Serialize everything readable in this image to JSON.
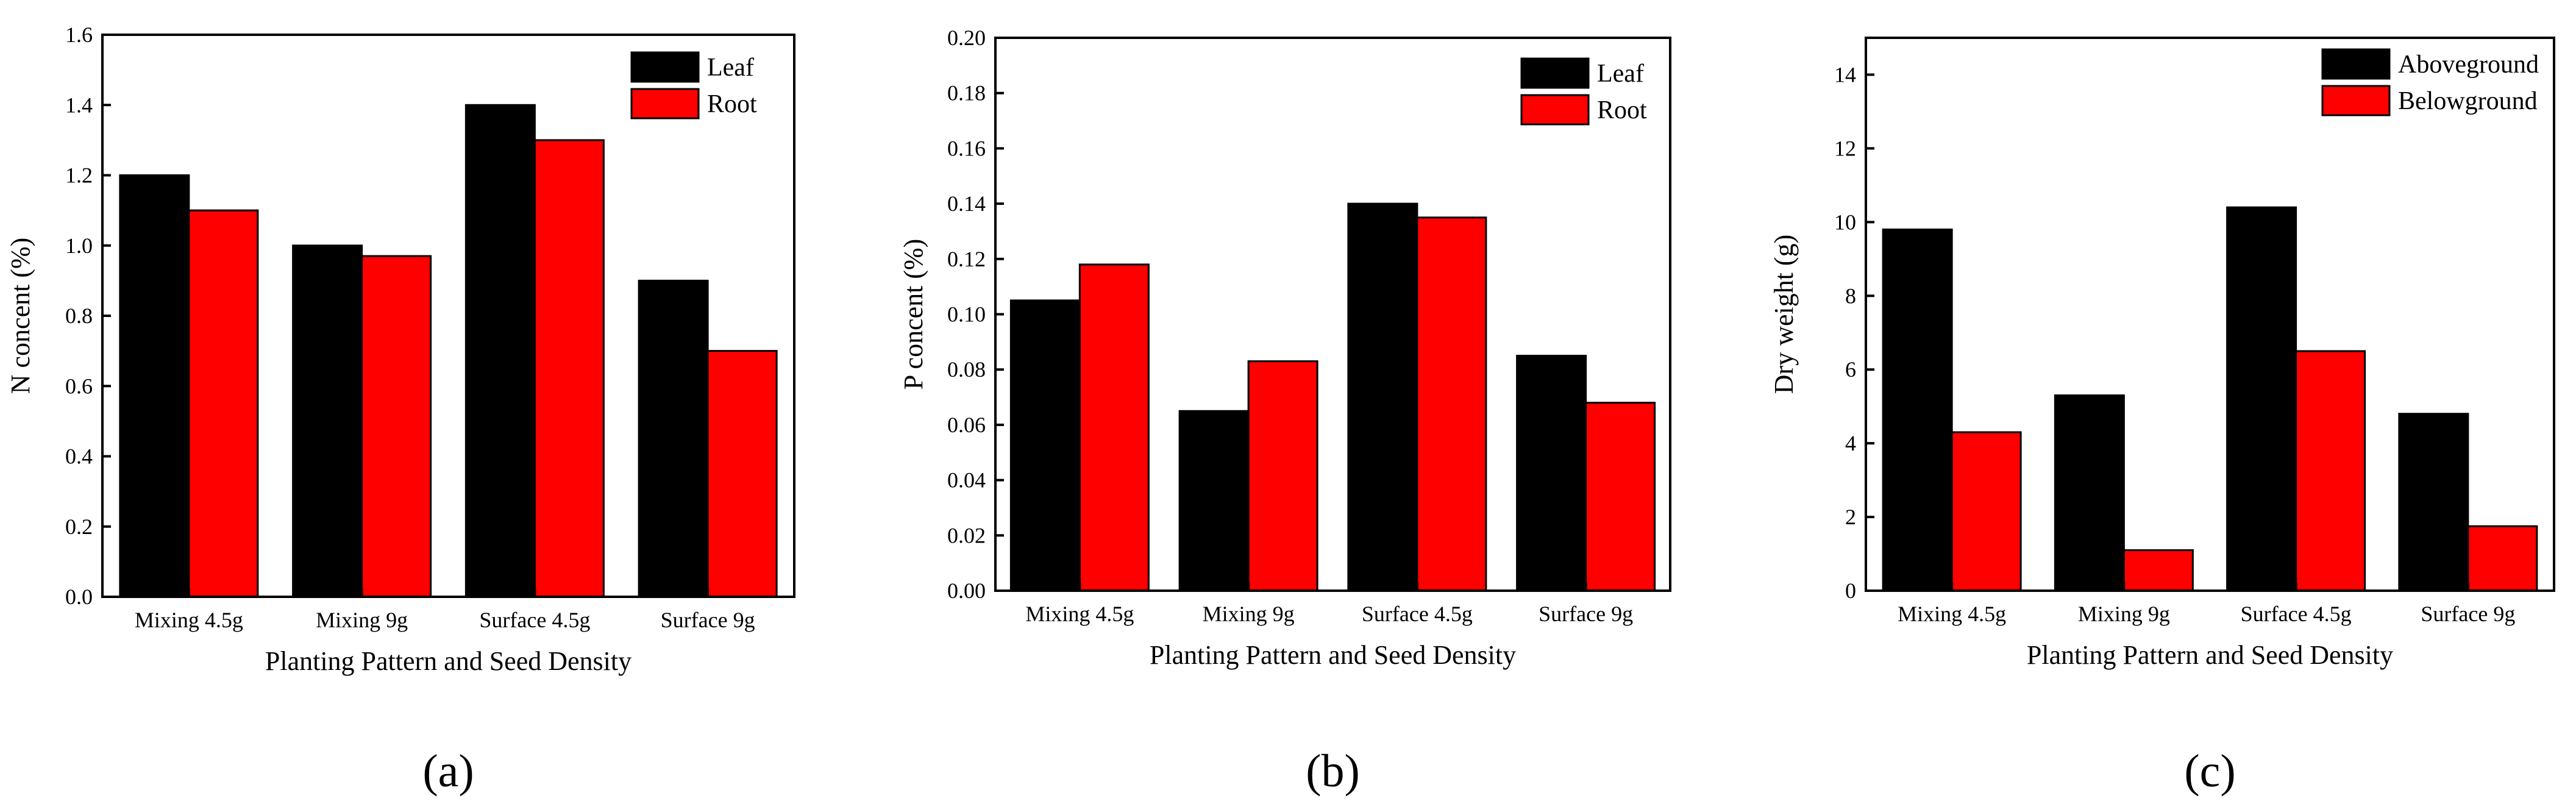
{
  "colors": {
    "series1": "#000000",
    "series2": "#ff0000"
  },
  "chart_data": [
    {
      "type": "bar",
      "caption": "(a)",
      "xlabel": "Planting Pattern and Seed Density",
      "ylabel": "N concent (%)",
      "categories": [
        "Mixing 4.5g",
        "Mixing 9g",
        "Surface 4.5g",
        "Surface 9g"
      ],
      "ylim": [
        0,
        1.6
      ],
      "yticks": [
        0.0,
        0.2,
        0.4,
        0.6,
        0.8,
        1.0,
        1.2,
        1.4,
        1.6
      ],
      "ytick_labels": [
        "0.0",
        "0.2",
        "0.4",
        "0.6",
        "0.8",
        "1.0",
        "1.2",
        "1.4",
        "1.6"
      ],
      "legend_position": "top-right",
      "series": [
        {
          "name": "Leaf",
          "values": [
            1.2,
            1.0,
            1.4,
            0.9
          ]
        },
        {
          "name": "Root",
          "values": [
            1.1,
            0.97,
            1.3,
            0.7
          ]
        }
      ]
    },
    {
      "type": "bar",
      "caption": "(b)",
      "xlabel": "Planting Pattern and Seed Density",
      "ylabel": "P concent (%)",
      "categories": [
        "Mixing 4.5g",
        "Mixing 9g",
        "Surface 4.5g",
        "Surface 9g"
      ],
      "ylim": [
        0,
        0.2
      ],
      "yticks": [
        0.0,
        0.02,
        0.04,
        0.06,
        0.08,
        0.1,
        0.12,
        0.14,
        0.16,
        0.18,
        0.2
      ],
      "ytick_labels": [
        "0.00",
        "0.02",
        "0.04",
        "0.06",
        "0.08",
        "0.10",
        "0.12",
        "0.14",
        "0.16",
        "0.18",
        "0.20"
      ],
      "legend_position": "top-right",
      "series": [
        {
          "name": "Leaf",
          "values": [
            0.105,
            0.065,
            0.14,
            0.085
          ]
        },
        {
          "name": "Root",
          "values": [
            0.118,
            0.083,
            0.135,
            0.068
          ]
        }
      ]
    },
    {
      "type": "bar",
      "caption": "(c)",
      "xlabel": "Planting Pattern and Seed Density",
      "ylabel": "Dry weight (g)",
      "categories": [
        "Mixing 4.5g",
        "Mixing 9g",
        "Surface 4.5g",
        "Surface 9g"
      ],
      "ylim": [
        0,
        15
      ],
      "yticks": [
        0,
        2,
        4,
        6,
        8,
        10,
        12,
        14
      ],
      "ytick_labels": [
        "0",
        "2",
        "4",
        "6",
        "8",
        "10",
        "12",
        "14"
      ],
      "legend_position": "top-right",
      "series": [
        {
          "name": "Aboveground",
          "values": [
            9.8,
            5.3,
            10.4,
            4.8
          ]
        },
        {
          "name": "Belowground",
          "values": [
            4.3,
            1.1,
            6.5,
            1.75
          ]
        }
      ]
    }
  ]
}
